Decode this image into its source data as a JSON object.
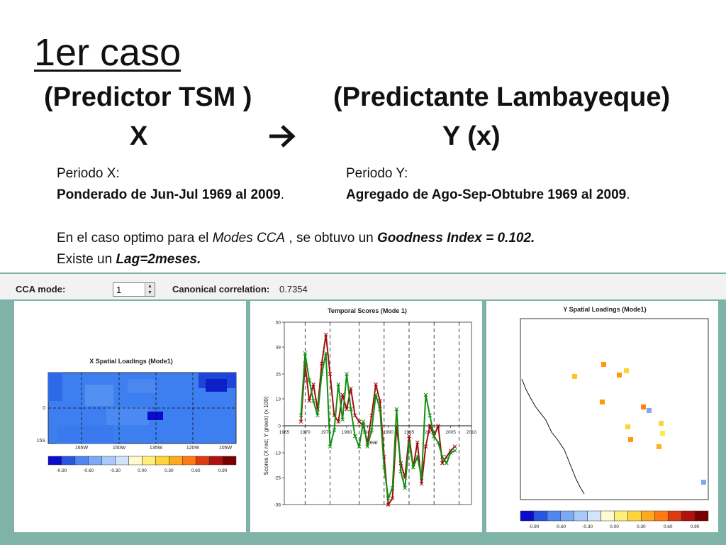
{
  "slide": {
    "title": "1er caso",
    "predictor_header": "(Predictor TSM )",
    "predictand_header": "(Predictante Lambayeque)",
    "x_label": "X",
    "arrow_icon": "right-arrow-icon",
    "y_label": "Y (x)",
    "periodo_x_label": "Periodo X:",
    "periodo_x_text": "Ponderado de Jun-Jul 1969 al 2009",
    "periodo_x_dot": ".",
    "periodo_y_label": "Periodo Y:",
    "periodo_y_text": "Agregado de Ago-Sep-Obtubre 1969 al 2009",
    "periodo_y_dot": ".",
    "cca_line_a": "En el caso optimo para el ",
    "cca_line_modes": "Modes CCA",
    "cca_line_b": " , se obtuvo un ",
    "cca_line_goodness": "Goodness Index = 0.102.",
    "lag_a": "Existe un ",
    "lag_b": "Lag=2meses."
  },
  "toolbar": {
    "cca_mode_label": "CCA mode:",
    "cca_mode_value": "1",
    "canonical_label": "Canonical correlation:",
    "canonical_value": "0.7354"
  },
  "x_map": {
    "title": "X Spatial Loadings (Mode1)",
    "lat_labels": [
      "0",
      "15S"
    ],
    "lon_labels": [
      "165W",
      "150W",
      "135W",
      "120W",
      "105W"
    ],
    "colorbar_ticks": [
      "-0.90",
      "-0.60",
      "-0.30",
      "0.00",
      "0.30",
      "0.60",
      "0.90"
    ]
  },
  "y_map": {
    "title": "Y Spatial Loadings (Mode1)",
    "colorbar_ticks": [
      "-0.90",
      "-0.60",
      "-0.30",
      "0.00",
      "0.30",
      "0.60",
      "0.90"
    ]
  },
  "colors": {
    "colorbar": [
      "#0b0bd0",
      "#2a55e0",
      "#4f86f0",
      "#7aaaf5",
      "#a8c9fa",
      "#d2e4fc",
      "#fffbd0",
      "#ffef7a",
      "#ffd43a",
      "#ffaa1e",
      "#ff7a10",
      "#e03a10",
      "#b01010",
      "#7a0000"
    ],
    "x_series": "#a01010",
    "y_series": "#109010"
  },
  "chart_data": {
    "type": "line",
    "title": "Temporal Scores (Mode 1)",
    "xlabel": "Year",
    "ylabel": "Scores (X red; Y green) (x 100)",
    "x_ticks": [
      "1965",
      "1970",
      "1975",
      "1980",
      "1985",
      "1990",
      "1995",
      "2000",
      "2005",
      "2010"
    ],
    "y_ticks": [
      "50",
      "38",
      "25",
      "13",
      "0",
      "-13",
      "-25",
      "-38"
    ],
    "xlim": [
      1965,
      2010
    ],
    "ylim": [
      -38,
      50
    ],
    "x": [
      1969,
      1970,
      1971,
      1972,
      1973,
      1974,
      1975,
      1976,
      1977,
      1978,
      1979,
      1980,
      1981,
      1982,
      1983,
      1984,
      1985,
      1986,
      1987,
      1988,
      1989,
      1990,
      1991,
      1992,
      1993,
      1994,
      1995,
      1996,
      1997,
      1998,
      1999,
      2000,
      2001,
      2002,
      2003,
      2004,
      2005,
      2006
    ],
    "series": [
      {
        "values": [
          2,
          30,
          12,
          20,
          8,
          30,
          44,
          25,
          5,
          2,
          15,
          8,
          18,
          5,
          2,
          0,
          -8,
          5,
          20,
          12,
          -15,
          -38,
          -35,
          0,
          -18,
          -25,
          -5,
          -20,
          -8,
          -28,
          -10,
          0,
          -5,
          0,
          -18,
          -15,
          -12,
          -10
        ]
      },
      {
        "values": [
          5,
          35,
          22,
          12,
          5,
          25,
          35,
          -10,
          -2,
          20,
          3,
          25,
          8,
          -5,
          -10,
          2,
          -10,
          -2,
          15,
          8,
          -20,
          -35,
          -30,
          8,
          -22,
          -30,
          -8,
          -20,
          -15,
          -25,
          15,
          5,
          -5,
          -8,
          -15,
          -18,
          -13,
          -12
        ]
      }
    ]
  }
}
